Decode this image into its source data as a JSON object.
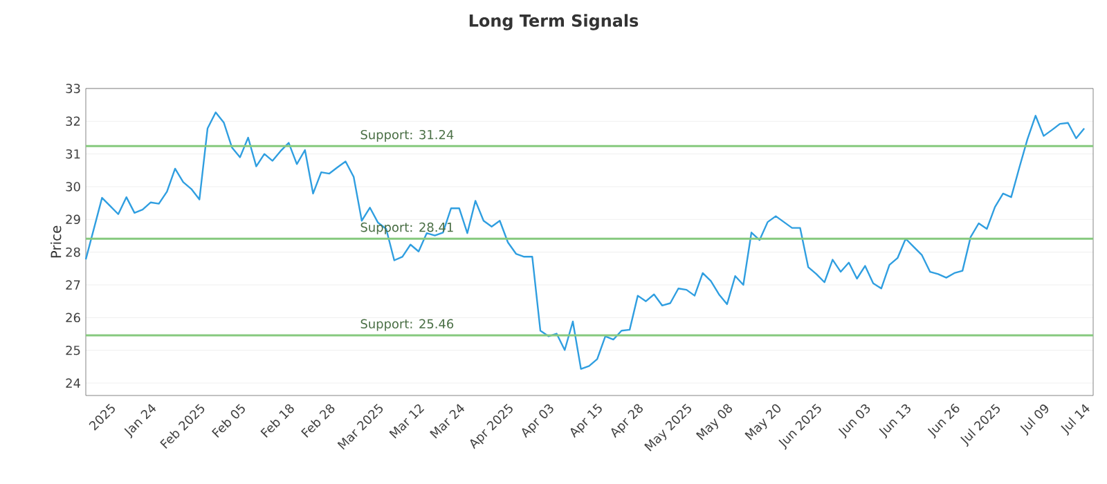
{
  "chart_data": {
    "type": "line",
    "title": "Long Term Signals",
    "ylabel": "Price",
    "categories": [
      null,
      null,
      null,
      "2025",
      null,
      null,
      null,
      null,
      "Jan 24",
      null,
      null,
      null,
      null,
      null,
      "Feb 2025",
      null,
      null,
      null,
      null,
      "Feb 05",
      null,
      null,
      null,
      null,
      null,
      "Feb 18",
      null,
      null,
      null,
      null,
      "Feb 28",
      null,
      null,
      null,
      null,
      null,
      "Mar 2025",
      null,
      null,
      null,
      null,
      "Mar 12",
      null,
      null,
      null,
      null,
      "Mar 24",
      null,
      null,
      null,
      null,
      null,
      "Apr 2025",
      null,
      null,
      null,
      null,
      "Apr 03",
      null,
      null,
      null,
      null,
      null,
      "Apr 15",
      null,
      null,
      null,
      null,
      "Apr 28",
      null,
      null,
      null,
      null,
      null,
      "May 2025",
      null,
      null,
      null,
      null,
      "May 08",
      null,
      null,
      null,
      null,
      null,
      "May 20",
      null,
      null,
      null,
      null,
      "Jun 2025",
      null,
      null,
      null,
      null,
      null,
      "Jun 03",
      null,
      null,
      null,
      null,
      "Jun 13",
      null,
      null,
      null,
      null,
      null,
      "Jun 26",
      null,
      null,
      null,
      null,
      "Jul 2025",
      null,
      null,
      null,
      null,
      null,
      "Jul 09",
      null,
      null,
      null,
      null,
      "Jul 14"
    ],
    "series": [
      {
        "color": "#2f9ee0",
        "values": [
          27.78,
          28.72,
          29.66,
          29.41,
          29.16,
          29.68,
          29.2,
          29.3,
          29.52,
          29.48,
          29.85,
          30.55,
          30.14,
          29.93,
          29.61,
          31.78,
          32.27,
          31.96,
          31.2,
          30.9,
          31.5,
          30.62,
          31.0,
          30.79,
          31.09,
          31.34,
          30.69,
          31.12,
          29.79,
          30.44,
          30.4,
          30.59,
          30.77,
          30.3,
          28.96,
          29.36,
          28.9,
          28.71,
          27.75,
          27.86,
          28.23,
          28.02,
          28.58,
          28.51,
          28.6,
          29.34,
          29.34,
          28.58,
          29.57,
          28.96,
          28.78,
          28.96,
          28.3,
          27.95,
          27.86,
          27.86,
          25.6,
          25.43,
          25.51,
          25.01,
          25.88,
          24.43,
          24.52,
          24.73,
          25.43,
          25.33,
          25.6,
          25.63,
          26.67,
          26.5,
          26.71,
          26.37,
          26.44,
          26.89,
          26.85,
          26.67,
          27.36,
          27.12,
          26.71,
          26.41,
          27.27,
          27.0,
          28.6,
          28.37,
          28.92,
          29.1,
          28.92,
          28.74,
          28.74,
          27.54,
          27.33,
          27.08,
          27.77,
          27.4,
          27.68,
          27.19,
          27.58,
          27.05,
          26.89,
          27.61,
          27.82,
          28.41,
          28.16,
          27.91,
          27.4,
          27.33,
          27.22,
          27.36,
          27.43,
          28.46,
          28.88,
          28.71,
          29.38,
          29.79,
          29.68,
          30.58,
          31.45,
          32.17,
          31.55,
          31.73,
          31.92,
          31.95,
          31.48,
          31.78
        ]
      }
    ],
    "ylim": [
      23.62,
      33
    ],
    "yticks": [
      24,
      25,
      26,
      27,
      28,
      29,
      30,
      31,
      32,
      33
    ],
    "ref_lines": [
      {
        "axis": "y",
        "value": 31.24,
        "label": "Support: 31.24",
        "color": "#86c97e"
      },
      {
        "axis": "y",
        "value": 28.41,
        "label": "Support: 28.41",
        "color": "#86c97e"
      },
      {
        "axis": "y",
        "value": 25.46,
        "label": "Support: 25.46",
        "color": "#86c97e"
      }
    ],
    "grid": "y",
    "marker": "none",
    "line_style": "solid"
  }
}
